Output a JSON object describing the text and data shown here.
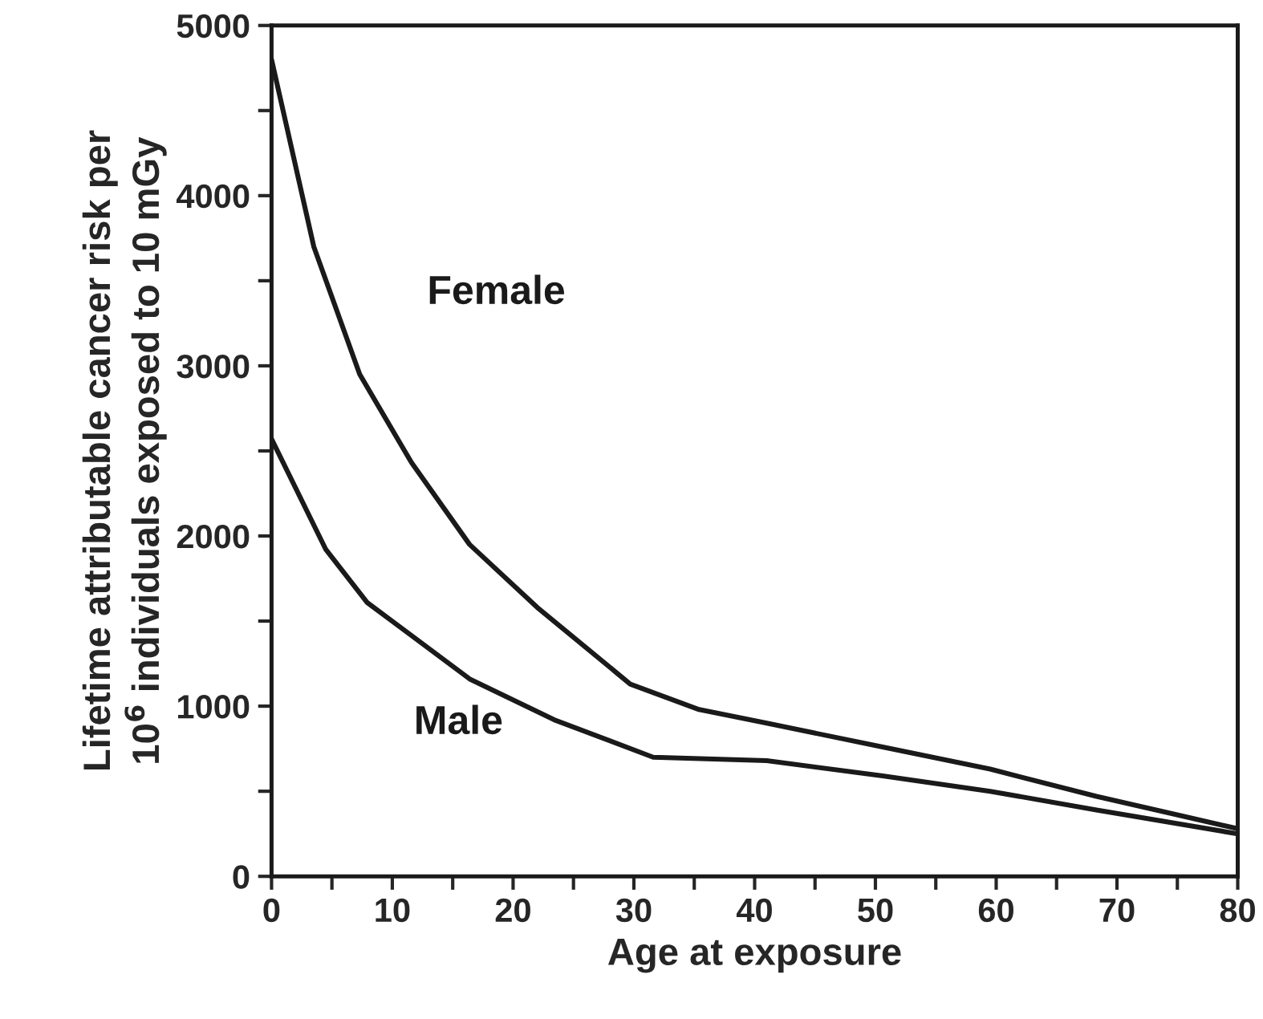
{
  "chart_data": {
    "type": "line",
    "xlabel": "Age at exposure",
    "ylabel": "Lifetime attributable cancer risk per\n10$^{6}$ individuals exposed to 10 mGy",
    "series": [
      {
        "name": "Female",
        "color": "#1a1a1a",
        "x": [
          0,
          3.5,
          7.3,
          11.6,
          16.4,
          22,
          29.7,
          35.4,
          41,
          50.6,
          59.5,
          68.3,
          80
        ],
        "values": [
          4800,
          3700,
          2950,
          2430,
          1950,
          1580,
          1130,
          980,
          900,
          760,
          630,
          470,
          280
        ]
      },
      {
        "name": "Male",
        "color": "#1a1a1a",
        "x": [
          0,
          4.5,
          7.9,
          16.4,
          23.4,
          31.6,
          41,
          50.6,
          59.5,
          68.3,
          80
        ],
        "values": [
          2570,
          1920,
          1610,
          1160,
          920,
          700,
          680,
          590,
          500,
          390,
          250
        ]
      }
    ],
    "xlim": [
      0,
      80
    ],
    "xticks": [
      0,
      {
        "value": 5,
        "label": null
      },
      10,
      {
        "value": 15,
        "label": null
      },
      20,
      {
        "value": 25,
        "label": null
      },
      30,
      {
        "value": 35,
        "label": null
      },
      40,
      {
        "value": 45,
        "label": null
      },
      50,
      {
        "value": 55,
        "label": null
      },
      60,
      {
        "value": 65,
        "label": null
      },
      70,
      {
        "value": 75,
        "label": null
      },
      80
    ],
    "ylim": [
      0,
      5000
    ],
    "yticks": [
      0,
      {
        "value": 500,
        "label": null
      },
      1000,
      {
        "value": 1500,
        "label": null
      },
      2000,
      {
        "value": 2500,
        "label": null
      },
      3000,
      {
        "value": 3500,
        "label": null
      },
      4000,
      {
        "value": 4500,
        "label": null
      },
      5000
    ],
    "grid": false,
    "legend": false,
    "marker": "none",
    "line_style": "solid"
  }
}
